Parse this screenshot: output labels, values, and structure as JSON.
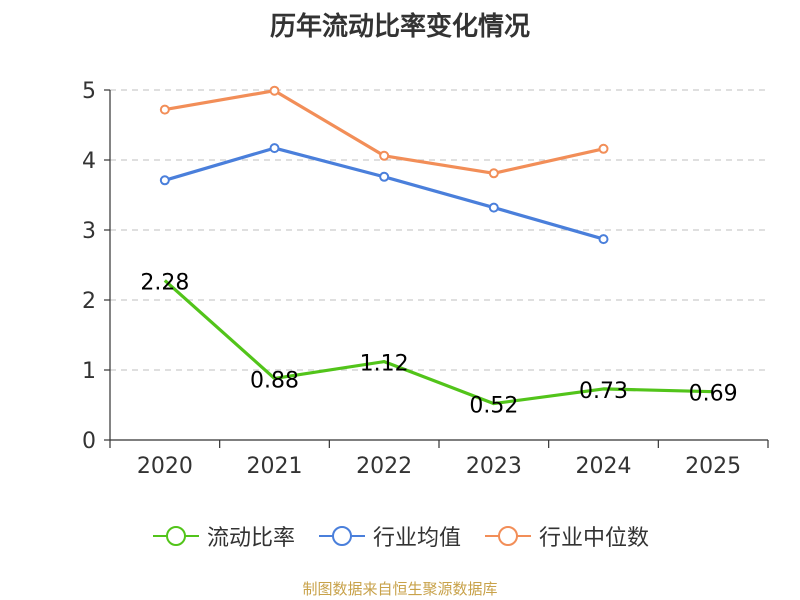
{
  "chart_data": {
    "type": "line",
    "title": "历年流动比率变化情况",
    "categories": [
      "2020",
      "2021",
      "2022",
      "2023",
      "2024",
      "2025"
    ],
    "yticks": [
      "0",
      "1",
      "2",
      "3",
      "4",
      "5"
    ],
    "ylim": [
      0,
      5
    ],
    "grid": true,
    "legend_position": "bottom",
    "series": [
      {
        "name": "流动比率",
        "color": "#52c41a",
        "values": [
          2.28,
          0.88,
          1.12,
          0.52,
          0.73,
          0.69
        ],
        "labels": [
          "2.28",
          "0.88",
          "1.12",
          "0.52",
          "0.73",
          "0.69"
        ]
      },
      {
        "name": "行业均值",
        "color": "#4a7fdb",
        "values": [
          3.71,
          4.17,
          3.76,
          3.32,
          2.87,
          null
        ]
      },
      {
        "name": "行业中位数",
        "color": "#f28e58",
        "values": [
          4.72,
          4.99,
          4.06,
          3.81,
          4.16,
          null
        ]
      }
    ]
  },
  "source_text": "制图数据来自恒生聚源数据库"
}
